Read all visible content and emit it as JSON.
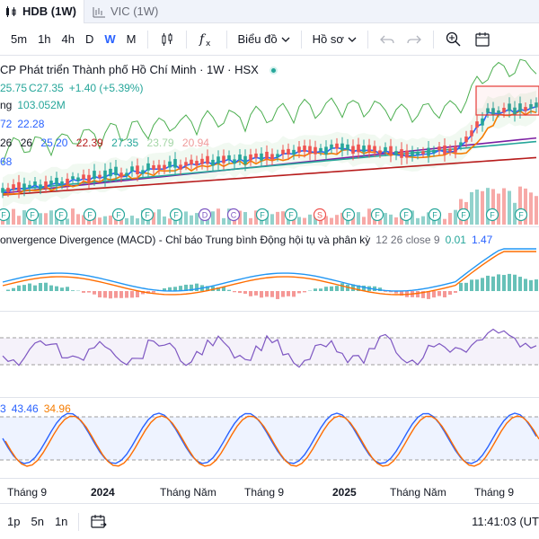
{
  "tabs": [
    {
      "label": "HDB (1W)",
      "icon": "candles-icon",
      "active": true
    },
    {
      "label": "VIC (1W)",
      "icon": "bars-icon",
      "active": false
    }
  ],
  "toolbar": {
    "timeframes": [
      "5m",
      "1h",
      "4h",
      "D",
      "W",
      "M"
    ],
    "active_timeframe": "W",
    "chart_type_icon": "candlestick-icon",
    "indicators_icon": "fx-icon",
    "chart_label": "Biểu đồ",
    "layout_label": "Hồ sơ",
    "undo_icon": "undo-icon",
    "redo_icon": "redo-icon",
    "search_icon": "zoom-icon",
    "more_icon": "calendar-icon"
  },
  "legend": {
    "title": "CP Phát triển Thành phố Hồ Chí Minh · 1W · HSX",
    "ohlc_tail": "25.75",
    "close_label": "C27.35",
    "change": "+1.40 (+5.39%)",
    "volume_prefix": "ng",
    "volume": "103.052M",
    "line3": [
      "72",
      "22.28"
    ],
    "ma_values": [
      {
        "text": "26",
        "color": "#131722"
      },
      {
        "text": "26",
        "color": "#131722"
      },
      {
        "text": "25.20",
        "color": "#2962ff"
      },
      {
        "text": "22.39",
        "color": "#b71c1c"
      },
      {
        "text": "27.35",
        "color": "#26a69a"
      },
      {
        "text": "23.79",
        "color": "#a5d6a7"
      },
      {
        "text": "20.94",
        "color": "#ef9a9a"
      }
    ],
    "line5": "68"
  },
  "macd": {
    "title": "onvergence Divergence (MACD) - Chỉ báo Trung bình Động hội tụ và phân kỳ",
    "params": "12 26 close 9",
    "v1": "0.01",
    "v2": "1.47"
  },
  "stoch": {
    "v0": "3",
    "k": "43.46",
    "d": "34.96"
  },
  "time_axis": [
    {
      "label": "Tháng 9",
      "bold": false
    },
    {
      "label": "2024",
      "bold": true
    },
    {
      "label": "Tháng Năm",
      "bold": false
    },
    {
      "label": "Tháng 9",
      "bold": false
    },
    {
      "label": "2025",
      "bold": true
    },
    {
      "label": "Tháng Năm",
      "bold": false
    },
    {
      "label": "Tháng 9",
      "bold": false
    }
  ],
  "bottom": {
    "ranges": [
      "1p",
      "5n",
      "1n"
    ],
    "range_icon": "calendar-range-icon",
    "clock": "11:41:03 (UT"
  },
  "event_markers": [
    "F",
    "F",
    "F",
    "F",
    "F",
    "F",
    "F",
    "D",
    "C",
    "F",
    "F",
    "S",
    "F",
    "F",
    "F",
    "F",
    "F",
    "F",
    "F"
  ],
  "colors": {
    "accent": "#2962ff",
    "up": "#26a69a",
    "down": "#ef5350"
  }
}
